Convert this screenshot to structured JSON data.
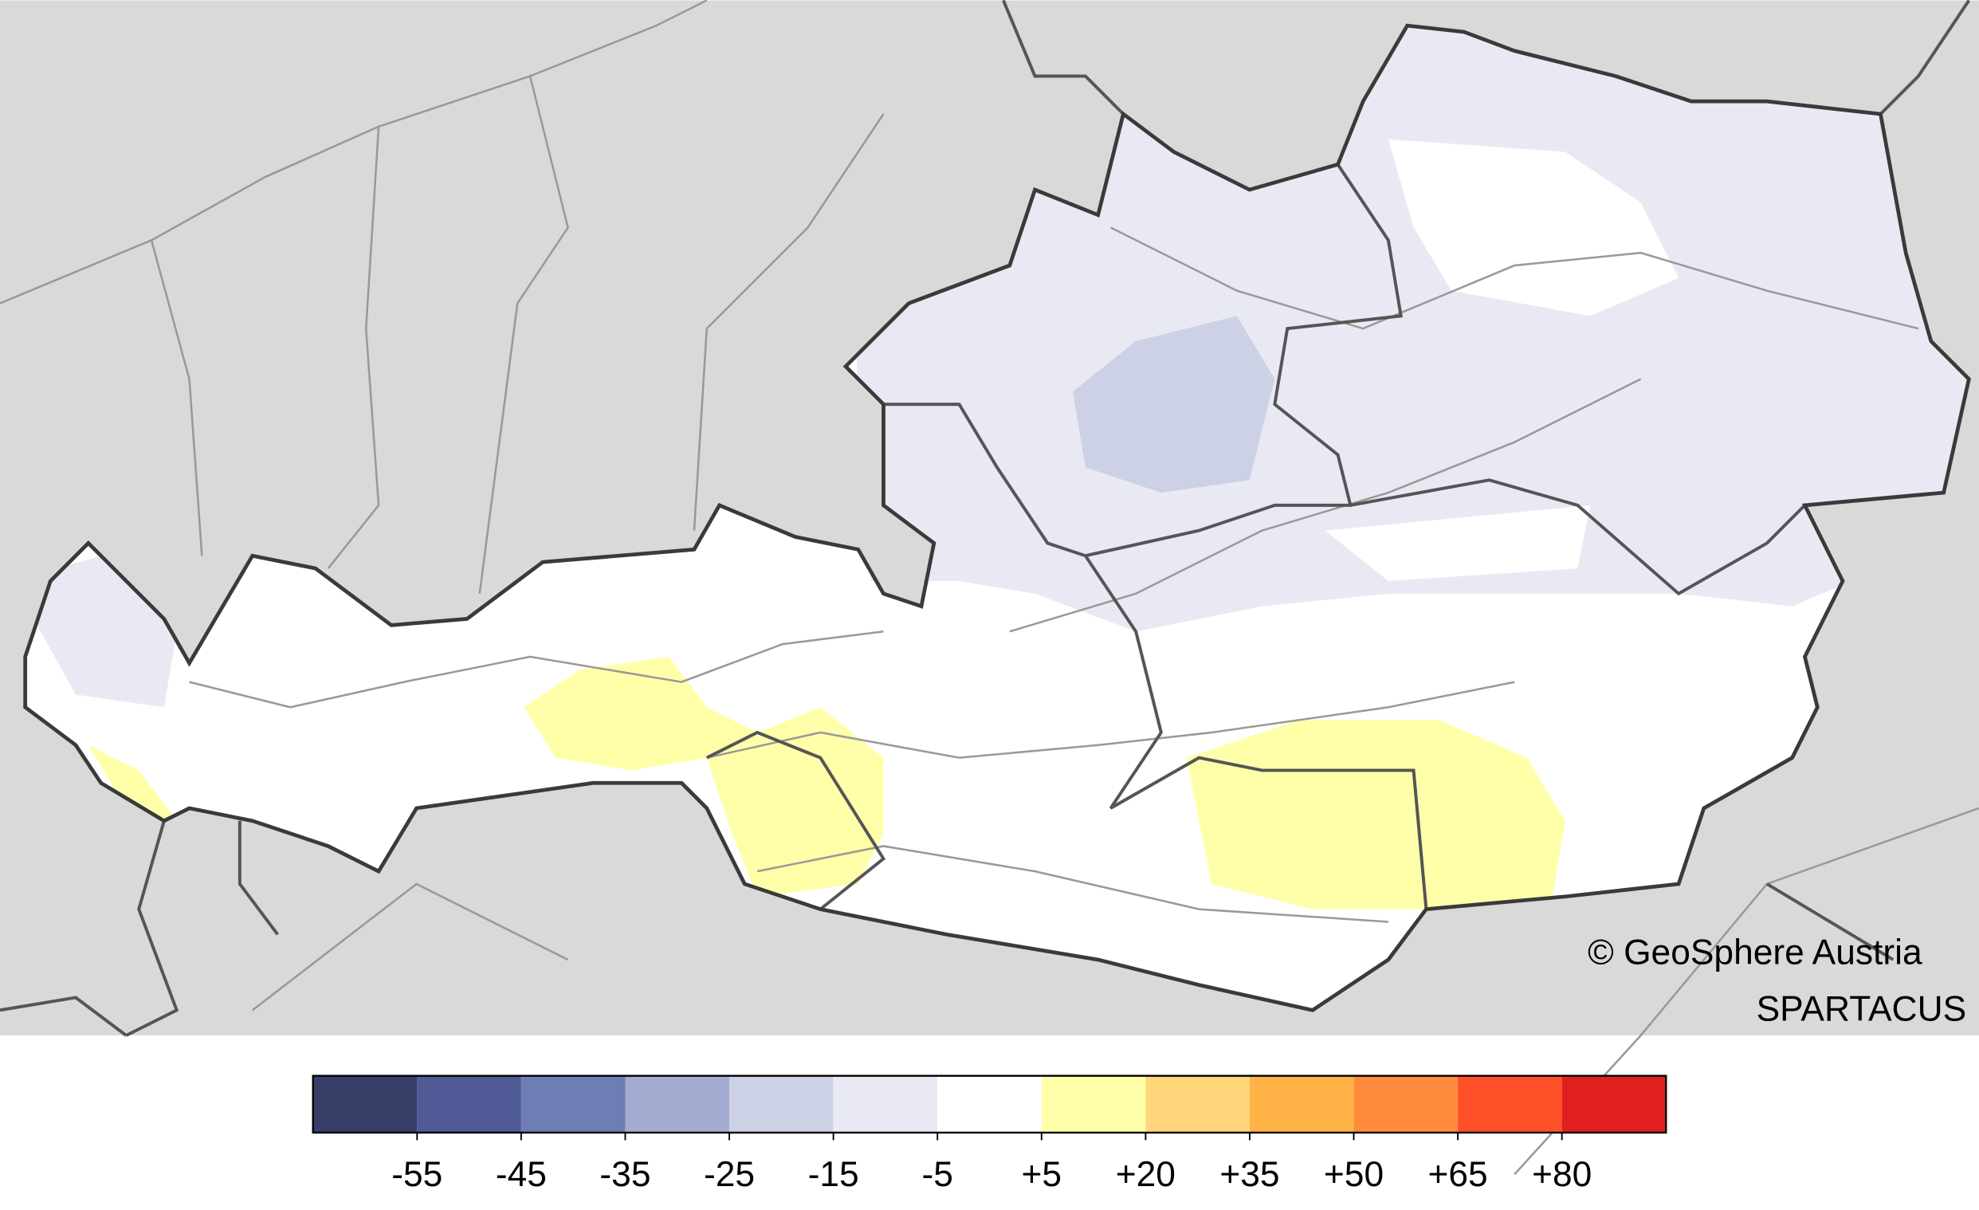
{
  "map": {
    "credit": "© GeoSphere Austria",
    "product": "SPARTACUS",
    "legend": {
      "colors": [
        "#383e68",
        "#4f5a96",
        "#6f7db5",
        "#a5acd1",
        "#cdd1e5",
        "#e8e9f3",
        "#ffffff",
        "#ffffaa",
        "#ffd77a",
        "#ffb246",
        "#ff8c3c",
        "#fd5028",
        "#e0201e"
      ],
      "ticks": [
        "-55",
        "-45",
        "-35",
        "-25",
        "-15",
        "-5",
        "+5",
        "+20",
        "+35",
        "+50",
        "+65",
        "+80"
      ]
    }
  }
}
